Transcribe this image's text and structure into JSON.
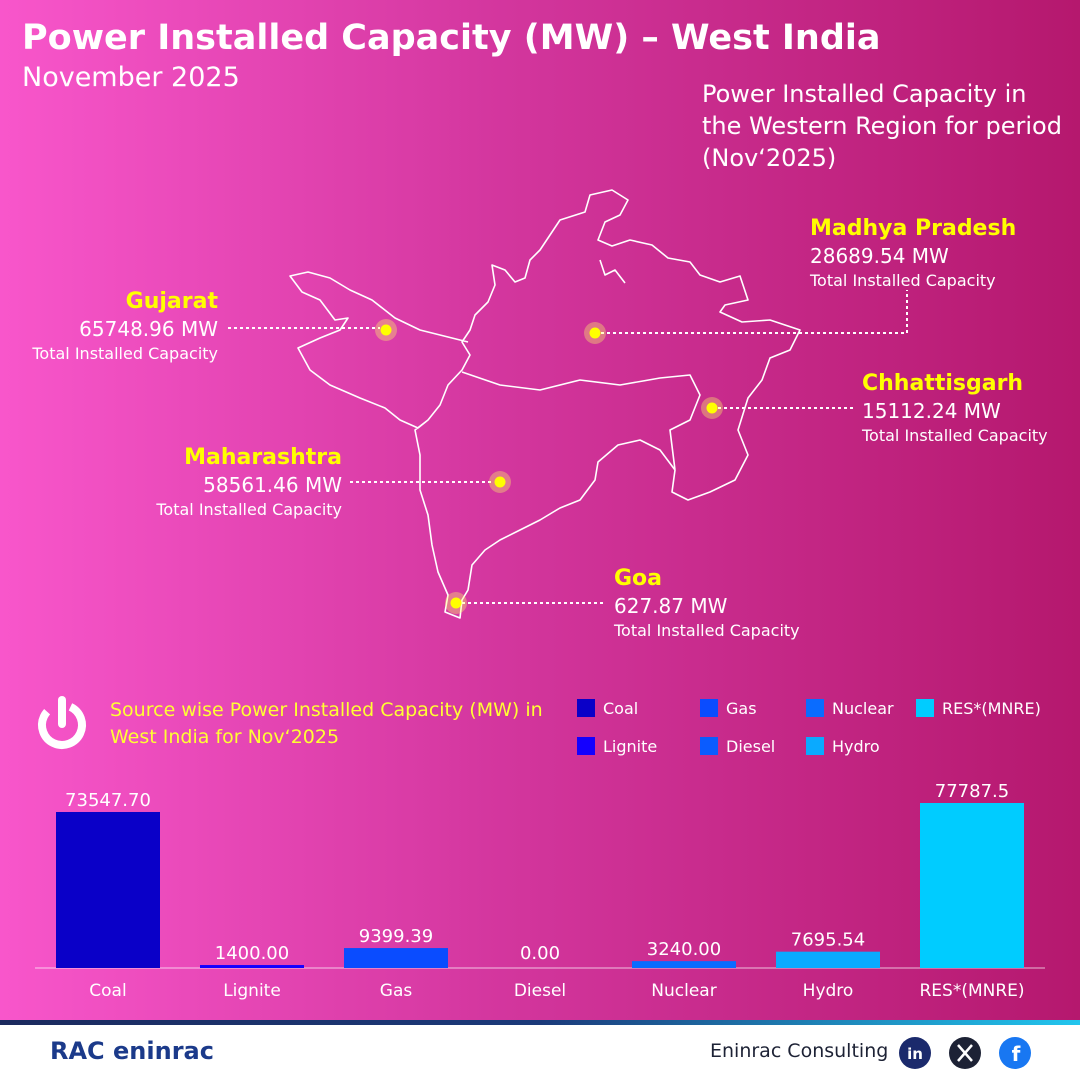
{
  "header": {
    "title": "Power Installed Capacity (MW) – West India",
    "subtitle": "November 2025"
  },
  "map": {
    "description": "Power Installed Capacity in the Western Region for period (Nov‘2025)",
    "states": [
      {
        "name": "Gujarat",
        "capacity": "65748.96 MW",
        "caption": "Total Installed Capacity"
      },
      {
        "name": "Madhya Pradesh",
        "capacity": "28689.54 MW",
        "caption": "Total Installed Capacity"
      },
      {
        "name": "Chhattisgarh",
        "capacity": "15112.24 MW",
        "caption": "Total Installed Capacity"
      },
      {
        "name": "Maharashtra",
        "capacity": "58561.46 MW",
        "caption": "Total Installed Capacity"
      },
      {
        "name": "Goa",
        "capacity": "627.87 MW",
        "caption": "Total Installed Capacity"
      }
    ]
  },
  "chart_data": {
    "type": "bar",
    "title": "Source wise Power Installed Capacity (MW) in West India for Nov‘2025",
    "categories": [
      "Coal",
      "Lignite",
      "Gas",
      "Diesel",
      "Nuclear",
      "Hydro",
      "RES*(MNRE)"
    ],
    "values": [
      73547.7,
      1400,
      9399.39,
      0,
      3240,
      7695.54,
      77787.5
    ],
    "value_labels": [
      "73547.70",
      "1400.00",
      "9399.39",
      "0.00",
      "3240.00",
      "7695.54",
      "77787.5"
    ],
    "colors": [
      "#0a00c8",
      "#1400ff",
      "#0a4cff",
      "#0a5cff",
      "#0a6cff",
      "#0aaaff",
      "#00ccff"
    ]
  },
  "footer": {
    "company": "Eninrac Consulting",
    "logo": "RAC eninrac"
  }
}
